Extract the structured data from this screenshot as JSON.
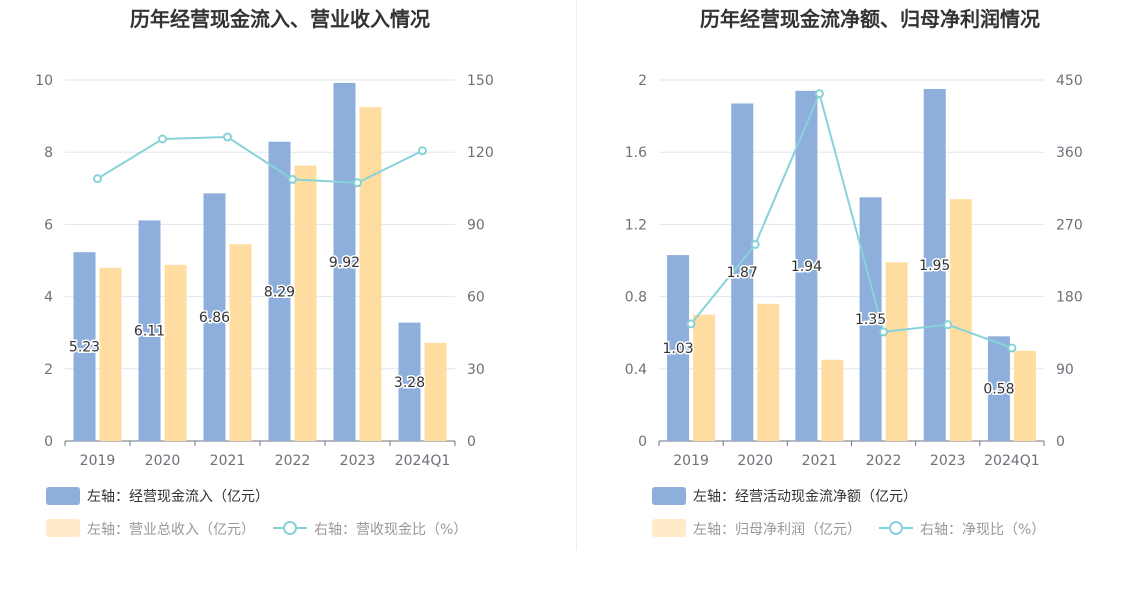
{
  "colors": {
    "inflow": "#8EAEDC",
    "revenue": "#FFDDA1",
    "ratio": "#86D3D8",
    "axis_text": "#6E7079",
    "grid": "#E0E6F1",
    "title": "#333333",
    "label": "#333333"
  },
  "chart_data": [
    {
      "type": "bar",
      "title": "历年经营现金流入、营业收入情况",
      "categories": [
        "2019",
        "2020",
        "2021",
        "2022",
        "2023",
        "2024Q1"
      ],
      "left_axis": {
        "ticks": [
          "0",
          "2",
          "4",
          "6",
          "8",
          "10"
        ],
        "ylim": [
          0,
          10
        ]
      },
      "right_axis": {
        "ticks": [
          "0",
          "30",
          "60",
          "90",
          "120",
          "150"
        ],
        "ylim": [
          0,
          150
        ]
      },
      "grid": true,
      "legend_position": "bottom-left",
      "series": [
        {
          "name": "左轴：经营现金流入（亿元）",
          "type": "bar",
          "axis": "left",
          "values": [
            5.23,
            6.11,
            6.86,
            8.29,
            9.92,
            3.28
          ],
          "labels": [
            "5.23",
            "6.11",
            "6.86",
            "8.29",
            "9.92",
            "3.28"
          ]
        },
        {
          "name": "左轴：营业总收入（亿元）",
          "type": "bar",
          "axis": "left",
          "values": [
            4.8,
            4.88,
            5.45,
            7.63,
            9.25,
            2.72
          ]
        },
        {
          "name": "右轴：营收现金比（%）",
          "type": "line",
          "axis": "right",
          "values": [
            109,
            125.5,
            126.3,
            108.7,
            107.3,
            120.6
          ]
        }
      ]
    },
    {
      "type": "bar",
      "title": "历年经营现金流净额、归母净利润情况",
      "categories": [
        "2019",
        "2020",
        "2021",
        "2022",
        "2023",
        "2024Q1"
      ],
      "left_axis": {
        "ticks": [
          "0",
          "0.4",
          "0.8",
          "1.2",
          "1.6",
          "2"
        ],
        "ylim": [
          0,
          2
        ]
      },
      "right_axis": {
        "ticks": [
          "0",
          "90",
          "180",
          "270",
          "360",
          "450"
        ],
        "ylim": [
          0,
          450
        ]
      },
      "grid": true,
      "legend_position": "bottom-left",
      "series": [
        {
          "name": "左轴：经营活动现金流净额（亿元）",
          "type": "bar",
          "axis": "left",
          "values": [
            1.03,
            1.87,
            1.94,
            1.35,
            1.95,
            0.58
          ],
          "labels": [
            "1.03",
            "1.87",
            "1.94",
            "1.35",
            "1.95",
            "0.58"
          ]
        },
        {
          "name": "左轴：归母净利润（亿元）",
          "type": "bar",
          "axis": "left",
          "values": [
            0.7,
            0.76,
            0.45,
            0.99,
            1.34,
            0.5
          ]
        },
        {
          "name": "右轴：净现比（%）",
          "type": "line",
          "axis": "right",
          "values": [
            146,
            245,
            433,
            136,
            145,
            116
          ]
        }
      ]
    }
  ]
}
